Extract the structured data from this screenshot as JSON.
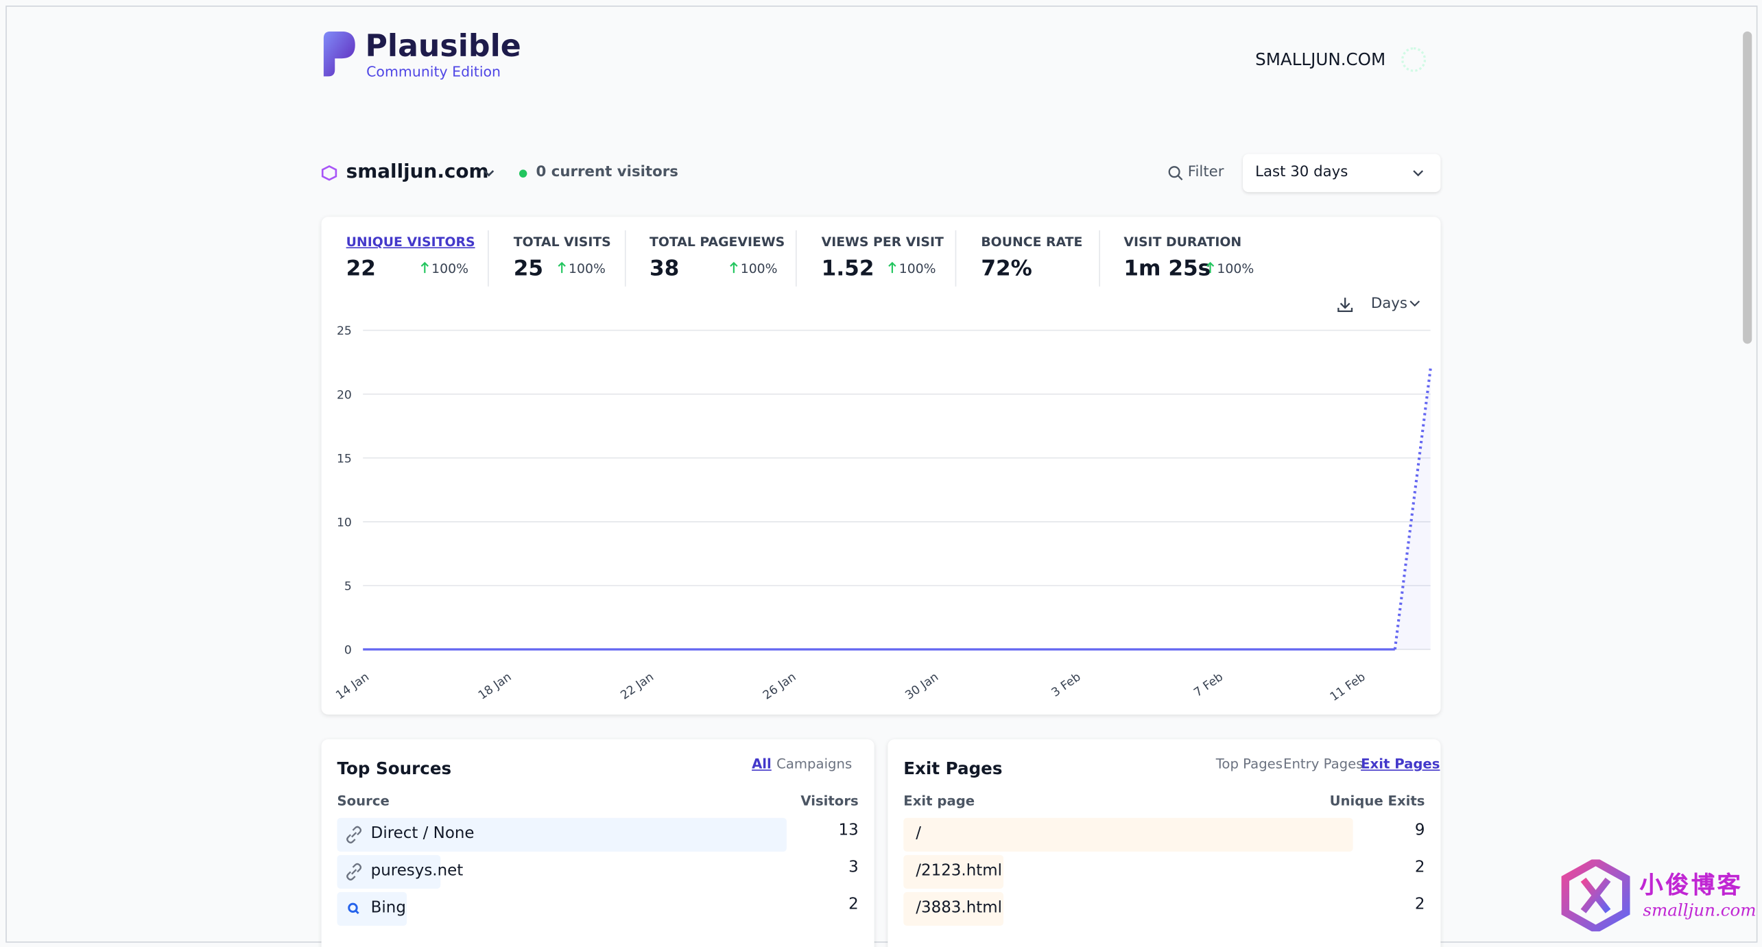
{
  "header": {
    "logo_title": "Plausible",
    "logo_subtitle": "Community Edition",
    "site_label": "SMALLJUN.COM"
  },
  "toolbar": {
    "site_name": "smalljun.com",
    "current_visitors": "0 current visitors",
    "filter": "Filter",
    "period": "Last 30 days"
  },
  "metrics": [
    {
      "label": "UNIQUE VISITORS",
      "value": "22",
      "change": "100%"
    },
    {
      "label": "TOTAL VISITS",
      "value": "25",
      "change": "100%"
    },
    {
      "label": "TOTAL PAGEVIEWS",
      "value": "38",
      "change": "100%"
    },
    {
      "label": "VIEWS PER VISIT",
      "value": "1.52",
      "change": "100%"
    },
    {
      "label": "BOUNCE RATE",
      "value": "72%"
    },
    {
      "label": "VISIT DURATION",
      "value": "1m 25s",
      "change": "100%"
    }
  ],
  "chart_interval": "Days",
  "chart_data": {
    "type": "line",
    "categories": [
      "14 Jan",
      null,
      null,
      null,
      "18 Jan",
      null,
      null,
      null,
      "22 Jan",
      null,
      null,
      null,
      "26 Jan",
      null,
      null,
      null,
      "30 Jan",
      null,
      null,
      null,
      "3 Feb",
      null,
      null,
      null,
      "7 Feb",
      null,
      null,
      null,
      "11 Feb",
      null,
      null
    ],
    "values": [
      0,
      0,
      0,
      0,
      0,
      0,
      0,
      0,
      0,
      0,
      0,
      0,
      0,
      0,
      0,
      0,
      0,
      0,
      0,
      0,
      0,
      0,
      0,
      0,
      0,
      0,
      0,
      0,
      0,
      0,
      22
    ],
    "color": "#6366f1",
    "ylim": [
      0,
      25
    ],
    "yticks": [
      0,
      5,
      10,
      15,
      20,
      25
    ],
    "grid": true
  },
  "top_sources": {
    "title": "Top Sources",
    "tabs": [
      "All",
      "Campaigns"
    ],
    "columns": [
      "Source",
      "Visitors"
    ],
    "rows": [
      {
        "label": "Direct / None",
        "value": 13
      },
      {
        "label": "puresys.net",
        "value": 3
      },
      {
        "label": "Bing",
        "value": 2
      }
    ]
  },
  "exit_pages": {
    "title": "Exit Pages",
    "tabs": [
      "Top Pages",
      "Entry Pages",
      "Exit Pages"
    ],
    "columns": [
      "Exit page",
      "Unique Exits"
    ],
    "rows": [
      {
        "label": "/",
        "value": 9
      },
      {
        "label": "/2123.html",
        "value": 2
      },
      {
        "label": "/3883.html",
        "value": 2
      }
    ]
  },
  "watermark": {
    "title": "小俊博客",
    "subtitle": "smalljun.com"
  }
}
